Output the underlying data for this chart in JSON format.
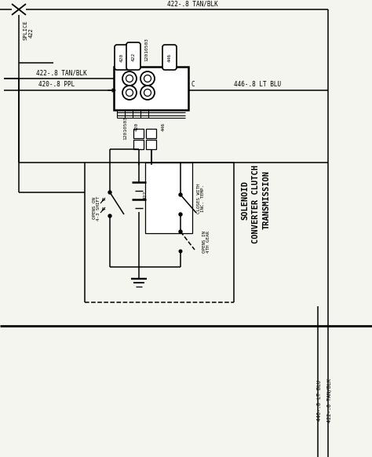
{
  "bg_color": "#f5f5f0",
  "lc": "#000000",
  "top_wire_label": "422-.8 TAN/BLK",
  "splice_label1": "SPLICE",
  "splice_label2": "422",
  "wire_422_tanblk": "422-.8 TAN/BLK",
  "wire_420_ppl": "420-.8 PPL",
  "wire_446_ltblu": "446-.8 LT BLU",
  "connector_id": "12010503",
  "pin_420": "420",
  "pin_422": "422",
  "pin_446": "446",
  "pin_c": "C",
  "solenoid_title1": "TRANSMISSION",
  "solenoid_title2": "CONVERTER CLUTCH",
  "solenoid_title3": "SOLENOID",
  "closes_with": "CLOSES WITH\nINC. TEMP.",
  "opens_on": "OPENS ON\n4-3 SHIFT",
  "opens_in": "OPENS IN\n4TH GEAR",
  "bottom_label1": "422-.8 TAN/BLK",
  "bottom_label2": "446-.8 LT BLU"
}
